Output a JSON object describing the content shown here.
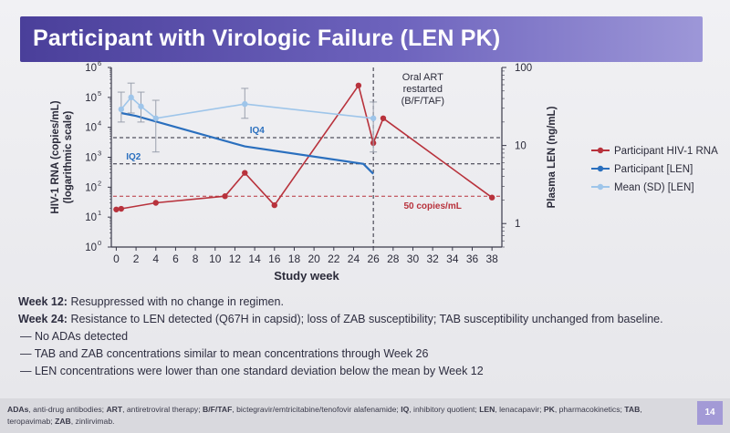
{
  "slide": {
    "title": "Participant with Virologic Failure (LEN PK)",
    "page_number": "14"
  },
  "chart_data": {
    "type": "line",
    "xlabel": "Study week",
    "x_ticks": [
      0,
      2,
      4,
      6,
      8,
      10,
      12,
      14,
      16,
      18,
      20,
      22,
      24,
      26,
      28,
      30,
      32,
      34,
      36,
      38
    ],
    "xlim": [
      -0.5,
      39
    ],
    "y_left": {
      "label_line1": "HIV-1 RNA (copies/mL)",
      "label_line2": "(logarithmic scale)",
      "scale": "log",
      "ylim": [
        1,
        1000000
      ],
      "ticks": [
        {
          "value": 1,
          "base": "10",
          "exp": "0"
        },
        {
          "value": 10,
          "base": "10",
          "exp": "1"
        },
        {
          "value": 100,
          "base": "10",
          "exp": "2"
        },
        {
          "value": 1000,
          "base": "10",
          "exp": "3"
        },
        {
          "value": 10000,
          "base": "10",
          "exp": "4"
        },
        {
          "value": 100000,
          "base": "10",
          "exp": "5"
        },
        {
          "value": 1000000,
          "base": "10",
          "exp": "6"
        }
      ]
    },
    "y_right": {
      "label": "Plasma LEN (ng/mL)",
      "scale": "log",
      "ylim": [
        0.5,
        100
      ],
      "ticks": [
        {
          "value": 1,
          "label": "1"
        },
        {
          "value": 10,
          "label": "10"
        },
        {
          "value": 100,
          "label": "100"
        }
      ]
    },
    "series": [
      {
        "name": "Participant HIV-1 RNA",
        "axis": "left",
        "color": "#b8323c",
        "x": [
          0,
          0.5,
          4,
          11,
          13,
          16,
          24.5,
          26,
          27,
          38
        ],
        "y": [
          18,
          19,
          30,
          50,
          300,
          25,
          250000,
          3000,
          20000,
          45
        ]
      },
      {
        "name": "Participant [LEN]",
        "axis": "left",
        "color": "#2a6fbe",
        "x": [
          0.5,
          2,
          13,
          25,
          26
        ],
        "y": [
          30000,
          24000,
          2300,
          600,
          280
        ]
      },
      {
        "name": "Mean (SD) [LEN]",
        "axis": "left",
        "color": "#9ec5ea",
        "x": [
          0.5,
          1.5,
          2.5,
          4,
          13,
          26
        ],
        "y": [
          40000,
          100000,
          50000,
          20000,
          60000,
          20000
        ],
        "err_low": [
          15000,
          30000,
          15000,
          1500,
          20000,
          1500
        ],
        "err_high": [
          150000,
          300000,
          150000,
          80000,
          200000,
          70000
        ]
      }
    ],
    "reference_lines": [
      {
        "label": "IQ4",
        "y": 4500,
        "color": "#2a6fbe",
        "style": "dashed"
      },
      {
        "label": "IQ2",
        "y": 600,
        "color": "#2a6fbe",
        "style": "dashed"
      },
      {
        "label": "50 copies/mL",
        "y": 50,
        "color": "#b8323c",
        "style": "dashed"
      }
    ],
    "vertical_marker": {
      "x": 26,
      "label_lines": [
        "Oral ART",
        "restarted",
        "(B/F/TAF)"
      ]
    },
    "legend_position": "right"
  },
  "notes": {
    "week12_label": "Week 12:",
    "week12_text": " Resuppressed with no change in regimen.",
    "week24_label": "Week 24:",
    "week24_text": " Resistance to LEN detected (Q67H in capsid); loss of ZAB susceptibility; TAB susceptibility unchanged from baseline.",
    "bullets": [
      "— No ADAs detected",
      "— TAB and ZAB concentrations similar to mean concentrations through Week 26",
      "— LEN concentrations were lower than one standard deviation below the mean by Week 12"
    ]
  },
  "footer": {
    "abbreviations": [
      {
        "key": "ADAs",
        "def": ", anti-drug antibodies; "
      },
      {
        "key": "ART",
        "def": ", antiretroviral therapy; "
      },
      {
        "key": "B/F/TAF",
        "def": ", bictegravir/emtricitabine/tenofovir alafenamide; "
      },
      {
        "key": "IQ",
        "def": ", inhibitory quotient; "
      },
      {
        "key": "LEN",
        "def": ", lenacapavir; "
      },
      {
        "key": "PK",
        "def": ", pharmacokinetics; "
      },
      {
        "key": "TAB",
        "def": ", teropavimab; "
      },
      {
        "key": "ZAB",
        "def": ", zinlirvimab."
      }
    ]
  }
}
